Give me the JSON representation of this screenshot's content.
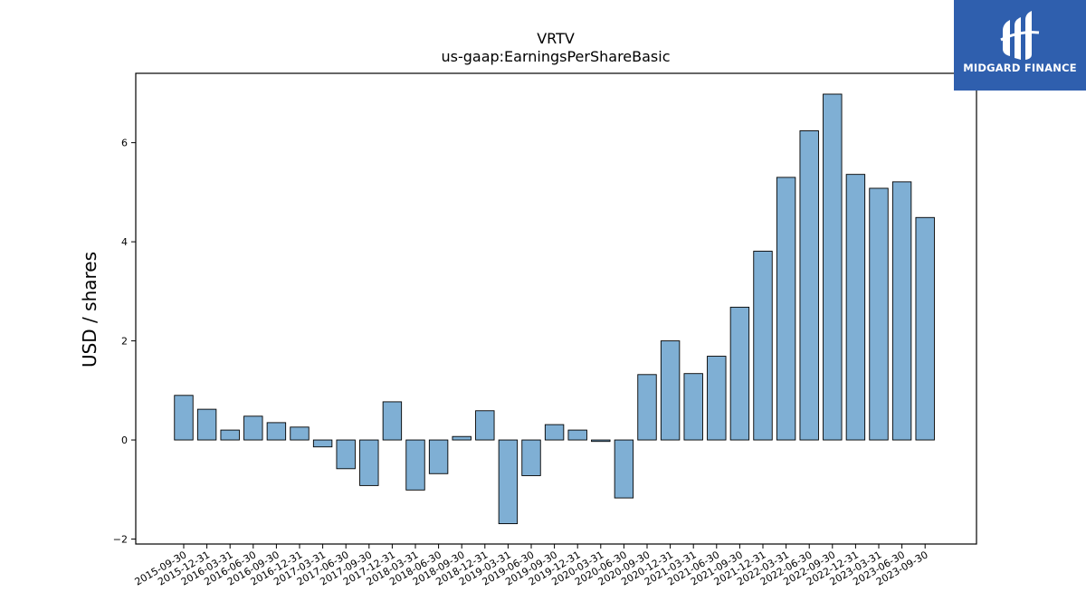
{
  "chart_data": {
    "type": "bar",
    "title": "VRTV",
    "subtitle": "us-gaap:EarningsPerShareBasic",
    "ylabel": "USD / shares",
    "xlabel": "",
    "ylim": [
      -2.1,
      7.4
    ],
    "yticks": [
      -2,
      0,
      2,
      4,
      6
    ],
    "grid": false,
    "bar_color": "#7fafd4",
    "categories": [
      "2015-09-30",
      "2015-12-31",
      "2016-03-31",
      "2016-06-30",
      "2016-09-30",
      "2016-12-31",
      "2017-03-31",
      "2017-06-30",
      "2017-09-30",
      "2017-12-31",
      "2018-03-31",
      "2018-06-30",
      "2018-09-30",
      "2018-12-31",
      "2019-03-31",
      "2019-06-30",
      "2019-09-30",
      "2019-12-31",
      "2020-03-31",
      "2020-06-30",
      "2020-09-30",
      "2020-12-31",
      "2021-03-31",
      "2021-06-30",
      "2021-09-30",
      "2021-12-31",
      "2022-03-31",
      "2022-06-30",
      "2022-09-30",
      "2022-12-31",
      "2023-03-31",
      "2023-06-30",
      "2023-09-30"
    ],
    "values": [
      0.9,
      0.62,
      0.2,
      0.48,
      0.35,
      0.26,
      -0.14,
      -0.58,
      -0.92,
      0.77,
      -1.01,
      -0.68,
      0.07,
      0.59,
      -1.69,
      -0.72,
      0.31,
      0.2,
      -0.03,
      -1.17,
      1.32,
      2.0,
      1.34,
      1.69,
      2.68,
      3.81,
      5.3,
      6.24,
      6.98,
      5.36,
      5.08,
      5.21,
      4.49
    ]
  },
  "logo": {
    "text": "MIDGARD FINANCE",
    "icon": "midgard-finance-logo-icon",
    "bg_color": "#2f5fae"
  }
}
